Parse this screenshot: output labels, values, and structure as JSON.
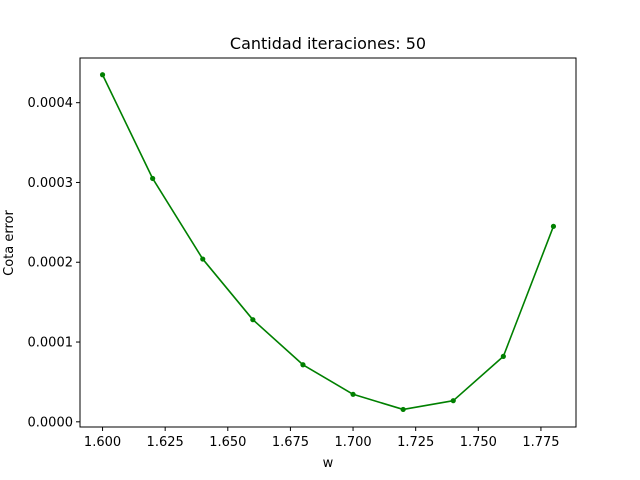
{
  "chart_data": {
    "type": "line",
    "title": "Cantidad iteraciones: 50",
    "xlabel": "w",
    "ylabel": "Cota error",
    "xlim": [
      1.591,
      1.789
    ],
    "ylim": [
      -6.5e-06,
      0.000456
    ],
    "x_ticks": [
      1.6,
      1.625,
      1.65,
      1.675,
      1.7,
      1.725,
      1.75,
      1.775
    ],
    "x_tick_labels": [
      "1.600",
      "1.625",
      "1.650",
      "1.675",
      "1.700",
      "1.725",
      "1.750",
      "1.775"
    ],
    "y_ticks": [
      0,
      0.0001,
      0.0002,
      0.0003,
      0.0004
    ],
    "y_tick_labels": [
      "0.0000",
      "0.0001",
      "0.0002",
      "0.0003",
      "0.0004"
    ],
    "grid": false,
    "legend": "none",
    "series": [
      {
        "color": "#008000",
        "marker": "circle",
        "x": [
          1.6,
          1.62,
          1.64,
          1.66,
          1.68,
          1.7,
          1.72,
          1.74,
          1.76,
          1.78
        ],
        "y": [
          0.000435,
          0.000305,
          0.000204,
          0.000128,
          7.15e-05,
          3.45e-05,
          1.55e-05,
          2.65e-05,
          8.2e-05,
          0.000245
        ]
      }
    ]
  }
}
